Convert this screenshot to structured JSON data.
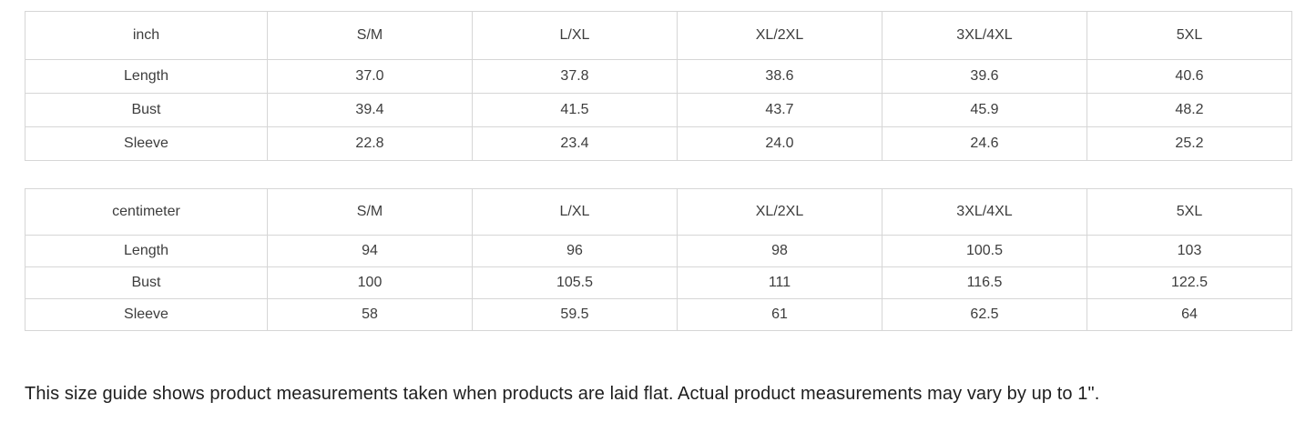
{
  "colors": {
    "background": "#ffffff",
    "border": "#d6d6d6",
    "table_text": "#3d3d3d",
    "note_text": "#1e1e1e"
  },
  "size_tables": [
    {
      "unit_label": "inch",
      "columns": [
        "S/M",
        "L/XL",
        "XL/2XL",
        "3XL/4XL",
        "5XL"
      ],
      "rows": [
        {
          "label": "Length",
          "values": [
            "37.0",
            "37.8",
            "38.6",
            "39.6",
            "40.6"
          ]
        },
        {
          "label": "Bust",
          "values": [
            "39.4",
            "41.5",
            "43.7",
            "45.9",
            "48.2"
          ]
        },
        {
          "label": "Sleeve",
          "values": [
            "22.8",
            "23.4",
            "24.0",
            "24.6",
            "25.2"
          ]
        }
      ]
    },
    {
      "unit_label": "centimeter",
      "columns": [
        "S/M",
        "L/XL",
        "XL/2XL",
        "3XL/4XL",
        "5XL"
      ],
      "rows": [
        {
          "label": "Length",
          "values": [
            "94",
            "96",
            "98",
            "100.5",
            "103"
          ]
        },
        {
          "label": "Bust",
          "values": [
            "100",
            "105.5",
            "111",
            "116.5",
            "122.5"
          ]
        },
        {
          "label": "Sleeve",
          "values": [
            "58",
            "59.5",
            "61",
            "62.5",
            "64"
          ]
        }
      ]
    }
  ],
  "note": "This size guide shows product measurements taken when products are laid flat. Actual product measurements may vary by up to 1\"."
}
